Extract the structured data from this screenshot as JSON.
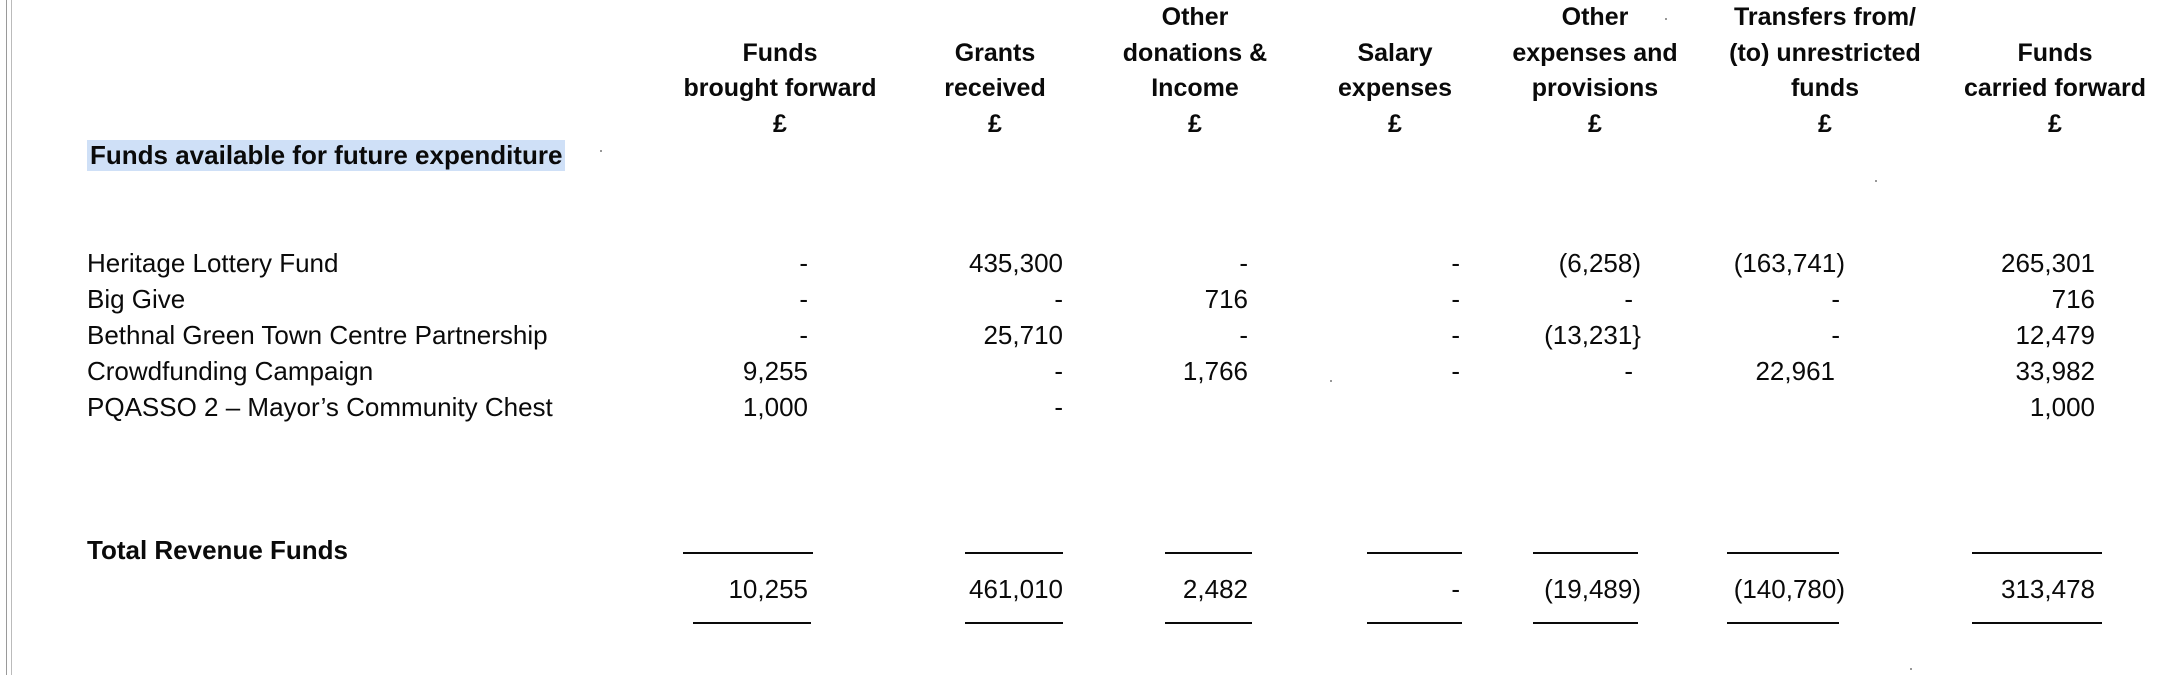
{
  "columns": [
    {
      "lines": [
        "",
        "Funds",
        "brought forward",
        "£"
      ]
    },
    {
      "lines": [
        "",
        "Grants",
        "received",
        "£"
      ]
    },
    {
      "lines": [
        "Other",
        "donations &",
        "Income",
        "£"
      ]
    },
    {
      "lines": [
        "",
        "Salary",
        "expenses",
        "£"
      ]
    },
    {
      "lines": [
        "Other",
        "expenses and",
        "provisions",
        "£"
      ]
    },
    {
      "lines": [
        "Transfers from/",
        "(to) unrestricted",
        "funds",
        "£"
      ]
    },
    {
      "lines": [
        "",
        "Funds",
        "carried forward",
        "£"
      ]
    }
  ],
  "section_title": "Funds available for future expenditure",
  "rows": [
    {
      "label": "Heritage Lottery Fund",
      "values": [
        "-",
        "435,300",
        "-",
        "-",
        "(6,258)",
        "(163,741)",
        "265,301"
      ]
    },
    {
      "label": "Big Give",
      "values": [
        "-",
        "-",
        "716",
        "-",
        "-",
        "-",
        "716"
      ]
    },
    {
      "label": "Bethnal Green Town Centre Partnership",
      "values": [
        "-",
        "25,710",
        "-",
        "-",
        "(13,231}",
        "-",
        "12,479"
      ]
    },
    {
      "label": "Crowdfunding Campaign",
      "values": [
        "9,255",
        "-",
        "1,766",
        "-",
        "-",
        "22,961",
        "33,982"
      ]
    },
    {
      "label": "PQASSO 2 – Mayor’s Community Chest",
      "values": [
        "1,000",
        "-",
        "",
        "",
        "",
        "",
        "1,000"
      ]
    }
  ],
  "total": {
    "label": "Total Revenue Funds",
    "values": [
      "10,255",
      "461,010",
      "2,482",
      "-",
      "(19,489)",
      "(140,780)",
      "313,478"
    ]
  }
}
